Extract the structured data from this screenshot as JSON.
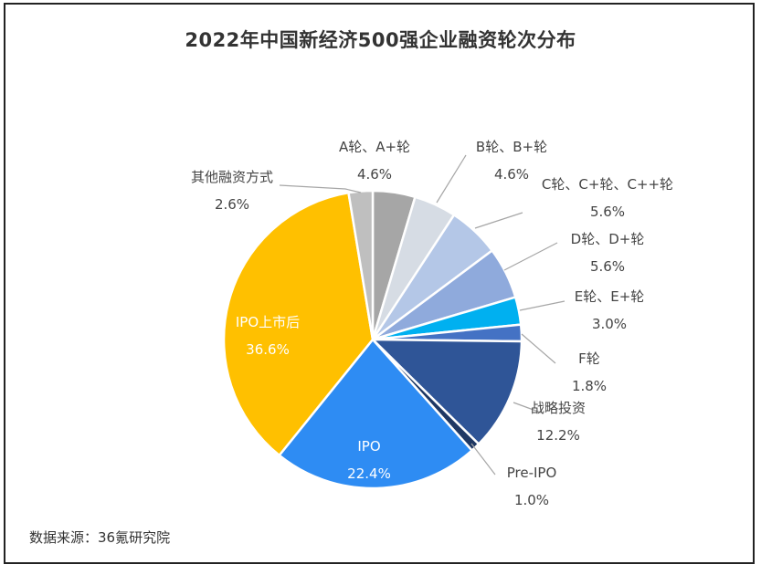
{
  "page": {
    "title": "2022年中国新经济500强企业融资轮次分布",
    "source": "数据来源：36氪研究院"
  },
  "chart_data": {
    "type": "pie",
    "title": "2022年中国新经济500强企业融资轮次分布",
    "unit": "%",
    "slices": [
      {
        "label": "A轮、A+轮",
        "value": 4.6,
        "display": "4.6%",
        "color": "#a6a6a6"
      },
      {
        "label": "B轮、B+轮",
        "value": 4.6,
        "display": "4.6%",
        "color": "#d6dce4"
      },
      {
        "label": "C轮、C+轮、C++轮",
        "value": 5.6,
        "display": "5.6%",
        "color": "#b4c7e7"
      },
      {
        "label": "D轮、D+轮",
        "value": 5.6,
        "display": "5.6%",
        "color": "#8faadc"
      },
      {
        "label": "E轮、E+轮",
        "value": 3.0,
        "display": "3.0%",
        "color": "#00b0f0"
      },
      {
        "label": "F轮",
        "value": 1.8,
        "display": "1.8%",
        "color": "#4472c4"
      },
      {
        "label": "战略投资",
        "value": 12.2,
        "display": "12.2%",
        "color": "#2f5597"
      },
      {
        "label": "Pre-IPO",
        "value": 1.0,
        "display": "1.0%",
        "color": "#1f3864"
      },
      {
        "label": "IPO",
        "value": 22.4,
        "display": "22.4%",
        "color": "#2e8cf3"
      },
      {
        "label": "IPO上市后",
        "value": 36.6,
        "display": "36.6%",
        "color": "#ffc000"
      },
      {
        "label": "其他融资方式",
        "value": 2.6,
        "display": "2.6%",
        "color": "#bfbfbf"
      }
    ]
  }
}
